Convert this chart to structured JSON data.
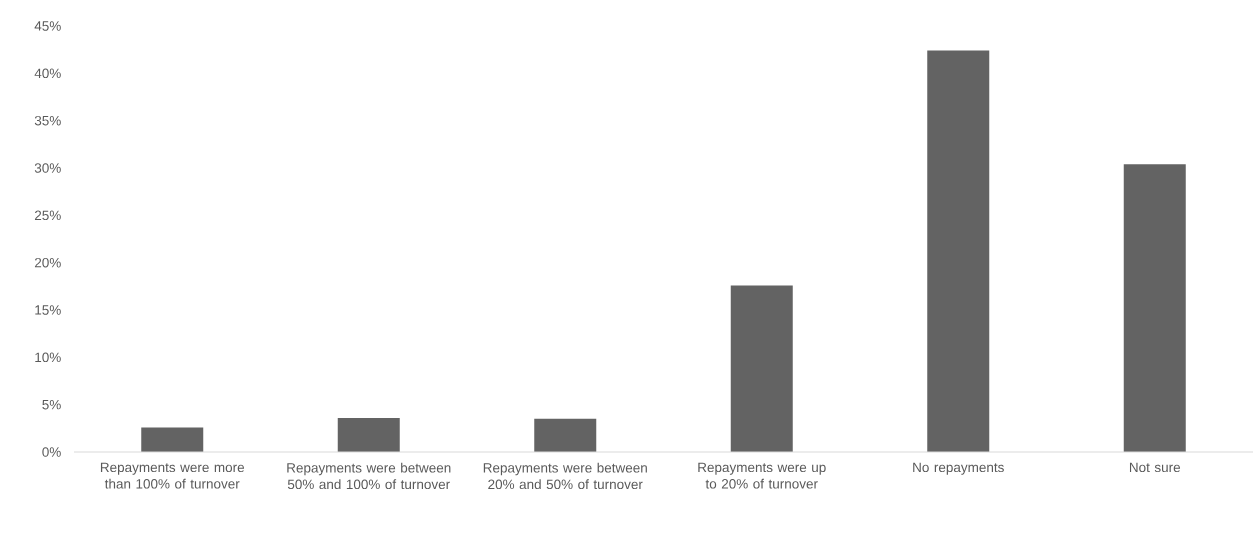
{
  "chart_data": {
    "type": "bar",
    "categories": [
      "Repayments were more than 100% of turnover",
      "Repayments were between 50% and 100% of turnover",
      "Repayments were between 20% and 50% of turnover",
      "Repayments were up to 20% of turnover",
      "No repayments",
      "Not sure"
    ],
    "values": [
      2.6,
      3.6,
      3.5,
      17.6,
      42.4,
      30.4
    ],
    "color": "#636363",
    "ylim": [
      0,
      45
    ],
    "yticks": [
      {
        "value": 0,
        "label": "0%"
      },
      {
        "value": 5,
        "label": "5%"
      },
      {
        "value": 10,
        "label": "10%"
      },
      {
        "value": 15,
        "label": "15%"
      },
      {
        "value": 20,
        "label": "20%"
      },
      {
        "value": 25,
        "label": "25%"
      },
      {
        "value": 30,
        "label": "30%"
      },
      {
        "value": 35,
        "label": "35%"
      },
      {
        "value": 40,
        "label": "40%"
      },
      {
        "value": 45,
        "label": "45%"
      }
    ]
  }
}
